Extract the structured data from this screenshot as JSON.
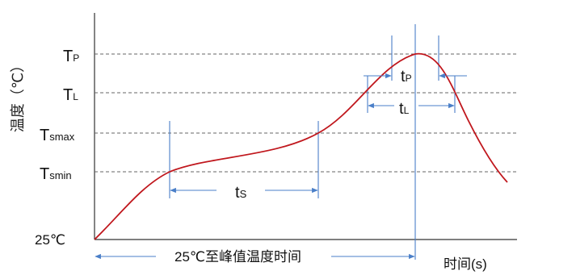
{
  "diagram": {
    "y_axis_label": "温度（℃）",
    "x_axis_label": "时间(s)",
    "levels": [
      {
        "main": "T",
        "sub": "P"
      },
      {
        "main": "T",
        "sub": "L"
      },
      {
        "main": "T",
        "sub": "smax"
      },
      {
        "main": "T",
        "sub": "smin"
      }
    ],
    "start_temp_label": "25℃",
    "intervals": {
      "ts": {
        "main": "t",
        "sub": "S"
      },
      "tp": {
        "main": "t",
        "sub": "P"
      },
      "tl": {
        "main": "t",
        "sub": "L"
      },
      "to_peak": "25℃至峰值温度时间"
    },
    "colors": {
      "curve": "#c0171d",
      "marker": "#4a7fc8",
      "axis": "#333333",
      "dashed": "#666666"
    }
  }
}
